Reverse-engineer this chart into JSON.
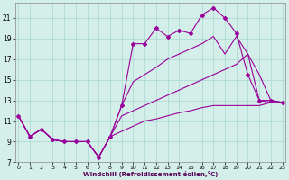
{
  "background_color": "#d4eeea",
  "grid_color": "#a8d8d0",
  "line_color": "#990099",
  "xlabel": "Windchill (Refroidissement éolien,°C)",
  "x": [
    0,
    1,
    2,
    3,
    4,
    5,
    6,
    7,
    8,
    9,
    10,
    11,
    12,
    13,
    14,
    15,
    16,
    17,
    18,
    19,
    20,
    21,
    22,
    23
  ],
  "line_diamond": [
    11.5,
    9.5,
    10.2,
    9.2,
    9.0,
    9.0,
    9.0,
    7.5,
    9.5,
    12.5,
    18.5,
    18.5,
    20.0,
    19.2,
    19.8,
    19.5,
    21.3,
    22.0,
    21.0,
    19.5,
    15.5,
    13.0,
    13.0,
    12.8
  ],
  "line_upper": [
    11.5,
    9.5,
    10.2,
    9.2,
    9.0,
    9.0,
    9.0,
    7.5,
    9.5,
    12.5,
    14.8,
    15.5,
    16.2,
    17.0,
    17.5,
    18.0,
    18.5,
    19.2,
    17.5,
    19.2,
    17.5,
    15.5,
    13.0,
    12.8
  ],
  "line_mid": [
    11.5,
    9.5,
    10.2,
    9.2,
    9.0,
    9.0,
    9.0,
    7.5,
    9.5,
    11.5,
    12.0,
    12.5,
    13.0,
    13.5,
    14.0,
    14.5,
    15.0,
    15.5,
    16.0,
    16.5,
    17.5,
    13.0,
    12.8,
    12.8
  ],
  "line_lower": [
    11.5,
    9.5,
    10.2,
    9.2,
    9.0,
    9.0,
    9.0,
    7.5,
    9.5,
    10.0,
    10.5,
    11.0,
    11.2,
    11.5,
    11.8,
    12.0,
    12.3,
    12.5,
    12.5,
    12.5,
    12.5,
    12.5,
    12.8,
    12.8
  ],
  "ylim": [
    7,
    22
  ],
  "xlim": [
    -0.3,
    23.3
  ],
  "yticks": [
    7,
    9,
    11,
    13,
    15,
    17,
    19,
    21
  ],
  "xticks": [
    0,
    1,
    2,
    3,
    4,
    5,
    6,
    7,
    8,
    9,
    10,
    11,
    12,
    13,
    14,
    15,
    16,
    17,
    18,
    19,
    20,
    21,
    22,
    23
  ]
}
